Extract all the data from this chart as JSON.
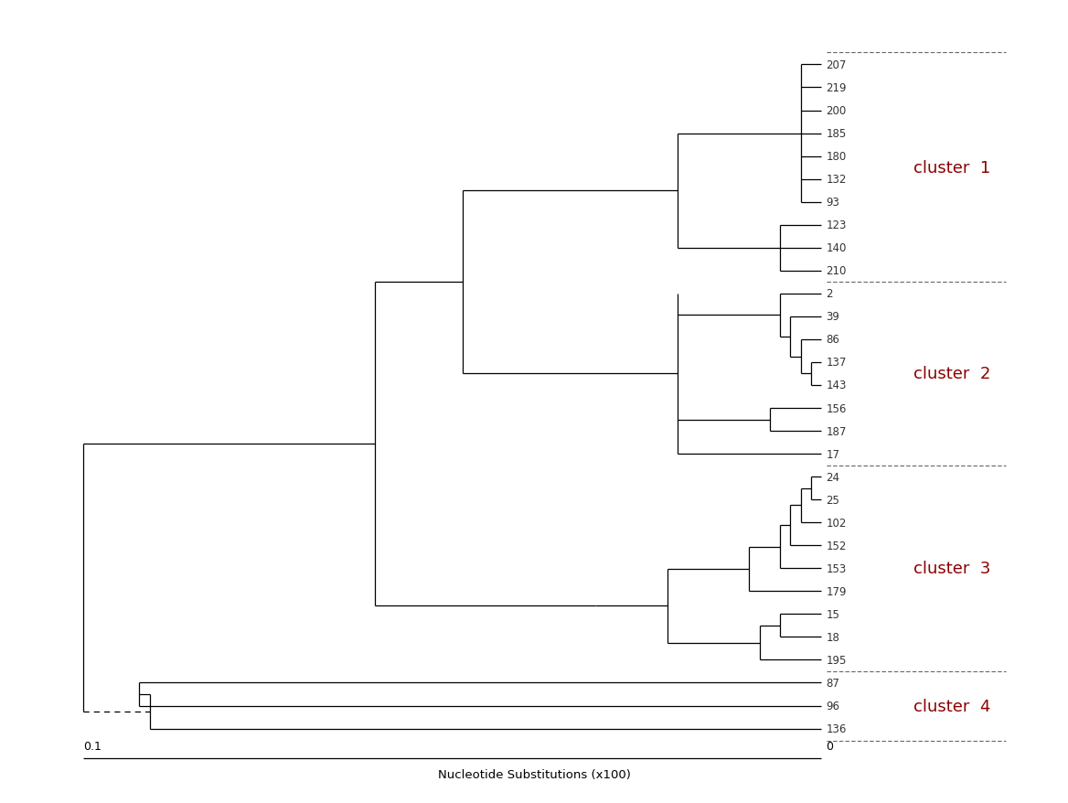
{
  "taxa": [
    "207",
    "219",
    "200",
    "185",
    "180",
    "132",
    "93",
    "123",
    "140",
    "210",
    "2",
    "39",
    "86",
    "137",
    "143",
    "156",
    "187",
    "17",
    "24",
    "25",
    "102",
    "152",
    "153",
    "179",
    "15",
    "18",
    "195",
    "87",
    "96",
    "136"
  ],
  "cluster_color": "#8B0000",
  "cluster_label_fontsize": 13,
  "taxa_fontsize": 8.5,
  "scale_label": "Nucleotide Substitutions (x100)",
  "background_color": "#ffffff",
  "line_color": "#000000",
  "dotted_line_color": "#666666",
  "cluster1_taxa": [
    "207",
    "219",
    "200",
    "185",
    "180",
    "132",
    "93",
    "123",
    "140",
    "210"
  ],
  "cluster2_taxa": [
    "2",
    "39",
    "86",
    "137",
    "143",
    "156",
    "187",
    "17"
  ],
  "cluster3_taxa": [
    "24",
    "25",
    "102",
    "152",
    "153",
    "179",
    "15",
    "18",
    "195"
  ],
  "cluster4_taxa": [
    "87",
    "96",
    "136"
  ]
}
